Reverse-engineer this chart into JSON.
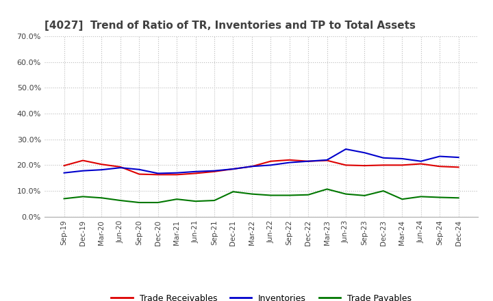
{
  "title": "[4027]  Trend of Ratio of TR, Inventories and TP to Total Assets",
  "title_fontsize": 11,
  "title_color": "#404040",
  "x_labels": [
    "Sep-19",
    "Dec-19",
    "Mar-20",
    "Jun-20",
    "Sep-20",
    "Dec-20",
    "Mar-21",
    "Jun-21",
    "Sep-21",
    "Dec-21",
    "Mar-22",
    "Jun-22",
    "Sep-22",
    "Dec-22",
    "Mar-23",
    "Jun-23",
    "Sep-23",
    "Dec-23",
    "Mar-24",
    "Jun-24",
    "Sep-24",
    "Dec-24"
  ],
  "trade_receivables": [
    0.198,
    0.218,
    0.203,
    0.193,
    0.165,
    0.163,
    0.163,
    0.168,
    0.175,
    0.185,
    0.195,
    0.215,
    0.22,
    0.215,
    0.218,
    0.2,
    0.198,
    0.2,
    0.2,
    0.205,
    0.195,
    0.192
  ],
  "inventories": [
    0.17,
    0.178,
    0.182,
    0.19,
    0.183,
    0.168,
    0.17,
    0.175,
    0.178,
    0.185,
    0.195,
    0.2,
    0.21,
    0.215,
    0.22,
    0.262,
    0.248,
    0.228,
    0.225,
    0.215,
    0.234,
    0.23
  ],
  "trade_payables": [
    0.07,
    0.078,
    0.073,
    0.063,
    0.055,
    0.055,
    0.068,
    0.06,
    0.063,
    0.097,
    0.088,
    0.083,
    0.083,
    0.085,
    0.107,
    0.088,
    0.082,
    0.1,
    0.068,
    0.078,
    0.075,
    0.073
  ],
  "ylim": [
    0.0,
    0.7
  ],
  "yticks": [
    0.0,
    0.1,
    0.2,
    0.3,
    0.4,
    0.5,
    0.6,
    0.7
  ],
  "tr_color": "#dd0000",
  "inv_color": "#0000cc",
  "tp_color": "#007700",
  "legend_labels": [
    "Trade Receivables",
    "Inventories",
    "Trade Payables"
  ],
  "grid_color": "#bbbbbb",
  "grid_style": "dotted",
  "bg_color": "#ffffff"
}
